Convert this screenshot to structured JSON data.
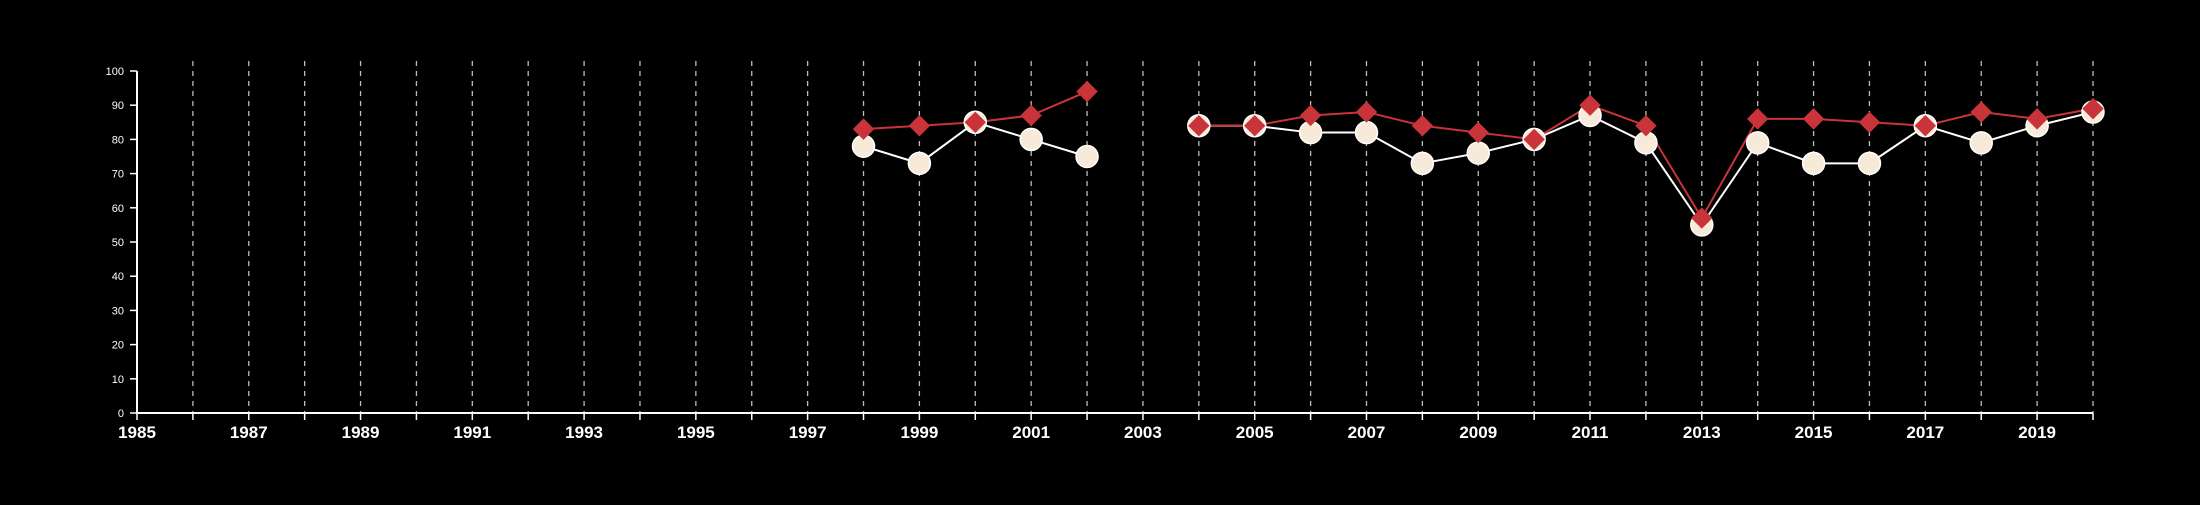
{
  "chart_data": {
    "type": "line",
    "title": "",
    "xlabel": "",
    "ylabel": "",
    "xlim": [
      1985,
      2020
    ],
    "ylim": [
      0,
      100
    ],
    "x_ticks": [
      1985,
      1986,
      1987,
      1988,
      1989,
      1990,
      1991,
      1992,
      1993,
      1994,
      1995,
      1996,
      1997,
      1998,
      1999,
      2000,
      2001,
      2002,
      2003,
      2004,
      2005,
      2006,
      2007,
      2008,
      2009,
      2010,
      2011,
      2012,
      2013,
      2014,
      2015,
      2016,
      2017,
      2018,
      2019,
      2020
    ],
    "x_tick_labels": [
      "1985",
      "1987",
      "1989",
      "1991",
      "1993",
      "1995",
      "1997",
      "1999",
      "2001",
      "2003",
      "2005",
      "2007",
      "2009",
      "2011",
      "2013",
      "2015",
      "2017",
      "2019"
    ],
    "y_ticks": [
      0,
      10,
      20,
      30,
      40,
      50,
      60,
      70,
      80,
      90,
      100
    ],
    "y_tick_labels": [
      "0",
      "10",
      "20",
      "30",
      "40",
      "50",
      "60",
      "70",
      "80",
      "90",
      "100"
    ],
    "grid": "vertical dashed",
    "legend": "none",
    "x": [
      1998,
      1999,
      2000,
      2001,
      2002,
      2003,
      2004,
      2005,
      2006,
      2007,
      2008,
      2009,
      2010,
      2011,
      2012,
      2013,
      2014,
      2015,
      2016,
      2017,
      2018,
      2019,
      2020
    ],
    "series": [
      {
        "marker": "diamond",
        "color": "#c8343a",
        "values": [
          83,
          84,
          85,
          87,
          94,
          null,
          84,
          84,
          87,
          88,
          84,
          82,
          80,
          90,
          84,
          57,
          86,
          86,
          85,
          84,
          88,
          86,
          89
        ]
      },
      {
        "marker": "circle",
        "color": "#f7ead8",
        "line_color": "#ffffff",
        "values": [
          78,
          73,
          85,
          80,
          75,
          null,
          84,
          84,
          82,
          82,
          73,
          76,
          80,
          87,
          79,
          55,
          79,
          73,
          73,
          84,
          79,
          84,
          88
        ]
      }
    ]
  }
}
